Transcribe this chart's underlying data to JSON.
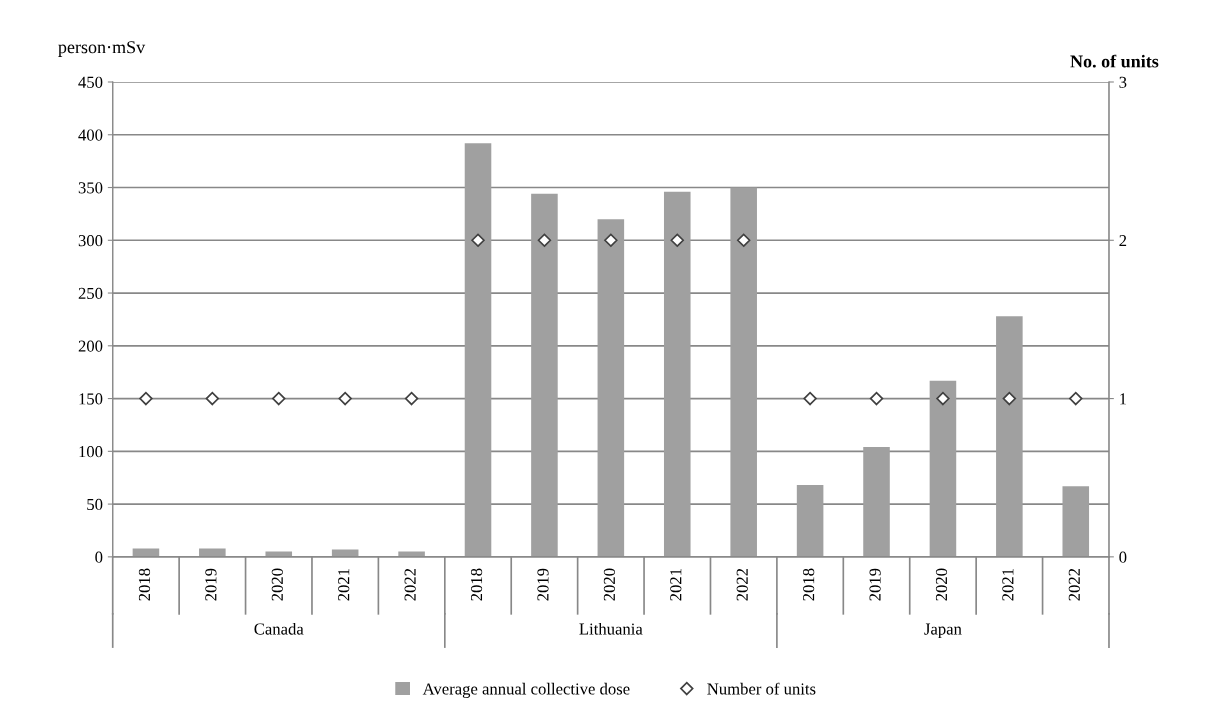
{
  "chart_data": {
    "type": "bar",
    "ylabel": "person·mSv",
    "y2label": "No. of units",
    "categories": [
      "2018",
      "2019",
      "2020",
      "2021",
      "2022",
      "2018",
      "2019",
      "2020",
      "2021",
      "2022",
      "2018",
      "2019",
      "2020",
      "2021",
      "2022"
    ],
    "annotations": [
      "Canada",
      "Lithuania",
      "Japan"
    ],
    "series": [
      {
        "name": "Average annual collective dose",
        "color": "#a0a0a0",
        "values": [
          8,
          8,
          5,
          7,
          5,
          392,
          344,
          320,
          346,
          350,
          68,
          104,
          167,
          228,
          67
        ]
      },
      {
        "name": "Number of units",
        "type": "scatter",
        "axis": "y2",
        "color": "#404040",
        "marker": "diamond",
        "values": [
          1,
          1,
          1,
          1,
          1,
          2,
          2,
          2,
          2,
          2,
          1,
          1,
          1,
          1,
          1
        ]
      }
    ],
    "ylim": [
      0,
      450
    ],
    "yticks": [
      0,
      50,
      100,
      150,
      200,
      250,
      300,
      350,
      400,
      450
    ],
    "y2lim": [
      0,
      3
    ],
    "y2ticks": [
      0,
      1,
      2,
      3
    ],
    "grid": "y",
    "legend": "bottom"
  }
}
